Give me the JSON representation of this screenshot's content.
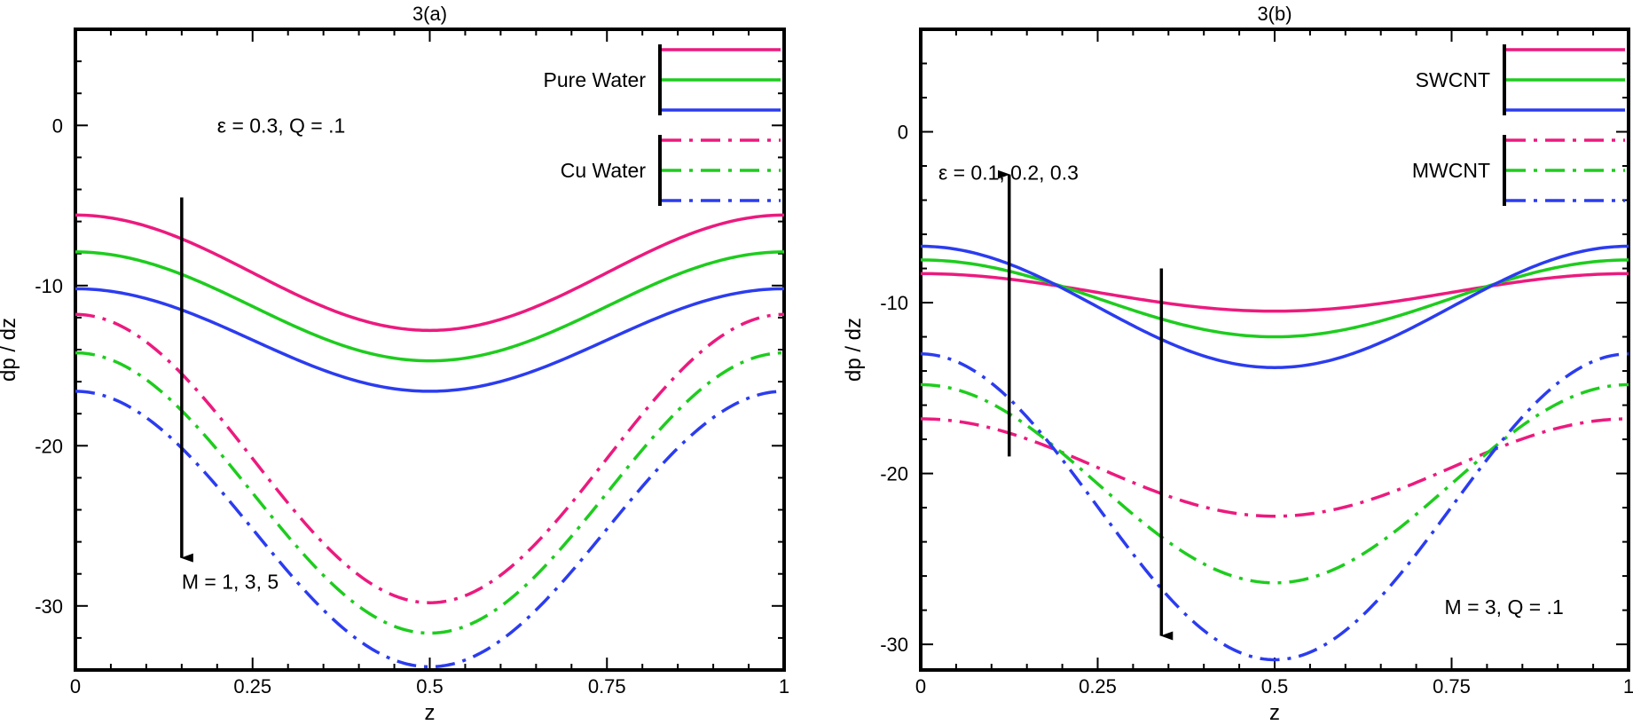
{
  "chart_data": [
    {
      "type": "line",
      "title": "3(a)",
      "xlabel": "z",
      "ylabel": "dp / dz",
      "xlim": [
        0,
        1
      ],
      "ylim": [
        -34,
        6
      ],
      "xticks": [
        0,
        0.25,
        0.5,
        0.75,
        1
      ],
      "xtick_labels": [
        "0",
        "0.25",
        "0.5",
        "0.75",
        "1"
      ],
      "yticks": [
        0,
        -10,
        -20,
        -30
      ],
      "ytick_labels": [
        "0",
        "-10",
        "-20",
        "-30"
      ],
      "grid": false,
      "legend_position": "top-right",
      "legend_groups": [
        {
          "label": "Pure Water",
          "style": "solid",
          "colors": [
            "#ec1a7e",
            "#1ecc1e",
            "#2b3cf0"
          ]
        },
        {
          "label": "Cu Water",
          "style": "dashdot",
          "colors": [
            "#ec1a7e",
            "#1ecc1e",
            "#2b3cf0"
          ]
        }
      ],
      "annotations": [
        {
          "text": "ε = 0.3, Q = .1",
          "at": [
            0.2,
            0
          ]
        },
        {
          "text": "M = 1, 3, 5",
          "at": [
            0.15,
            -28.5
          ]
        }
      ],
      "arrows": [
        {
          "from": [
            0.15,
            -4.5
          ],
          "to": [
            0.15,
            -27
          ],
          "direction": "down"
        }
      ],
      "series": [
        {
          "group": "Pure Water",
          "style": "solid",
          "color": "#ec1a7e",
          "x": [
            0,
            0.5,
            1
          ],
          "y_ends": -5.6,
          "y_mid": -12.8
        },
        {
          "group": "Pure Water",
          "style": "solid",
          "color": "#1ecc1e",
          "x": [
            0,
            0.5,
            1
          ],
          "y_ends": -7.9,
          "y_mid": -14.7
        },
        {
          "group": "Pure Water",
          "style": "solid",
          "color": "#2b3cf0",
          "x": [
            0,
            0.5,
            1
          ],
          "y_ends": -10.2,
          "y_mid": -16.6
        },
        {
          "group": "Cu Water",
          "style": "dashdot",
          "color": "#ec1a7e",
          "x": [
            0,
            0.5,
            1
          ],
          "y_ends": -11.8,
          "y_mid": -29.8
        },
        {
          "group": "Cu Water",
          "style": "dashdot",
          "color": "#1ecc1e",
          "x": [
            0,
            0.5,
            1
          ],
          "y_ends": -14.2,
          "y_mid": -31.7
        },
        {
          "group": "Cu Water",
          "style": "dashdot",
          "color": "#2b3cf0",
          "x": [
            0,
            0.5,
            1
          ],
          "y_ends": -16.6,
          "y_mid": -33.8
        }
      ]
    },
    {
      "type": "line",
      "title": "3(b)",
      "xlabel": "z",
      "ylabel": "dp / dz",
      "xlim": [
        0,
        1
      ],
      "ylim": [
        -31.5,
        6
      ],
      "xticks": [
        0,
        0.25,
        0.5,
        0.75,
        1
      ],
      "xtick_labels": [
        "0",
        "0.25",
        "0.5",
        "0.75",
        "1"
      ],
      "yticks": [
        0,
        -10,
        -20,
        -30
      ],
      "ytick_labels": [
        "0",
        "-10",
        "-20",
        "-30"
      ],
      "grid": false,
      "legend_position": "top-right",
      "legend_groups": [
        {
          "label": "SWCNT",
          "style": "solid",
          "colors": [
            "#ec1a7e",
            "#1ecc1e",
            "#2b3cf0"
          ]
        },
        {
          "label": "MWCNT",
          "style": "dashdot",
          "colors": [
            "#ec1a7e",
            "#1ecc1e",
            "#2b3cf0"
          ]
        }
      ],
      "annotations": [
        {
          "text": "ε = 0.1, 0.2, 0.3",
          "at": [
            0.025,
            -2.4
          ]
        },
        {
          "text": "M = 3, Q = .1",
          "at": [
            0.74,
            -27.8
          ]
        }
      ],
      "arrows": [
        {
          "from": [
            0.125,
            -19
          ],
          "to": [
            0.125,
            -2.5
          ],
          "direction": "up"
        },
        {
          "from": [
            0.34,
            -8
          ],
          "to": [
            0.34,
            -29.5
          ],
          "direction": "down"
        }
      ],
      "series": [
        {
          "group": "SWCNT",
          "style": "solid",
          "color": "#ec1a7e",
          "x": [
            0,
            0.5,
            1
          ],
          "y_ends": -8.3,
          "y_mid": -10.5
        },
        {
          "group": "SWCNT",
          "style": "solid",
          "color": "#1ecc1e",
          "x": [
            0,
            0.5,
            1
          ],
          "y_ends": -7.5,
          "y_mid": -12.0
        },
        {
          "group": "SWCNT",
          "style": "solid",
          "color": "#2b3cf0",
          "x": [
            0,
            0.5,
            1
          ],
          "y_ends": -6.7,
          "y_mid": -13.8
        },
        {
          "group": "MWCNT",
          "style": "dashdot",
          "color": "#ec1a7e",
          "x": [
            0,
            0.5,
            1
          ],
          "y_ends": -16.8,
          "y_mid": -22.5
        },
        {
          "group": "MWCNT",
          "style": "dashdot",
          "color": "#1ecc1e",
          "x": [
            0,
            0.5,
            1
          ],
          "y_ends": -14.8,
          "y_mid": -26.4
        },
        {
          "group": "MWCNT",
          "style": "dashdot",
          "color": "#2b3cf0",
          "x": [
            0,
            0.5,
            1
          ],
          "y_ends": -13.0,
          "y_mid": -30.9
        }
      ]
    }
  ]
}
